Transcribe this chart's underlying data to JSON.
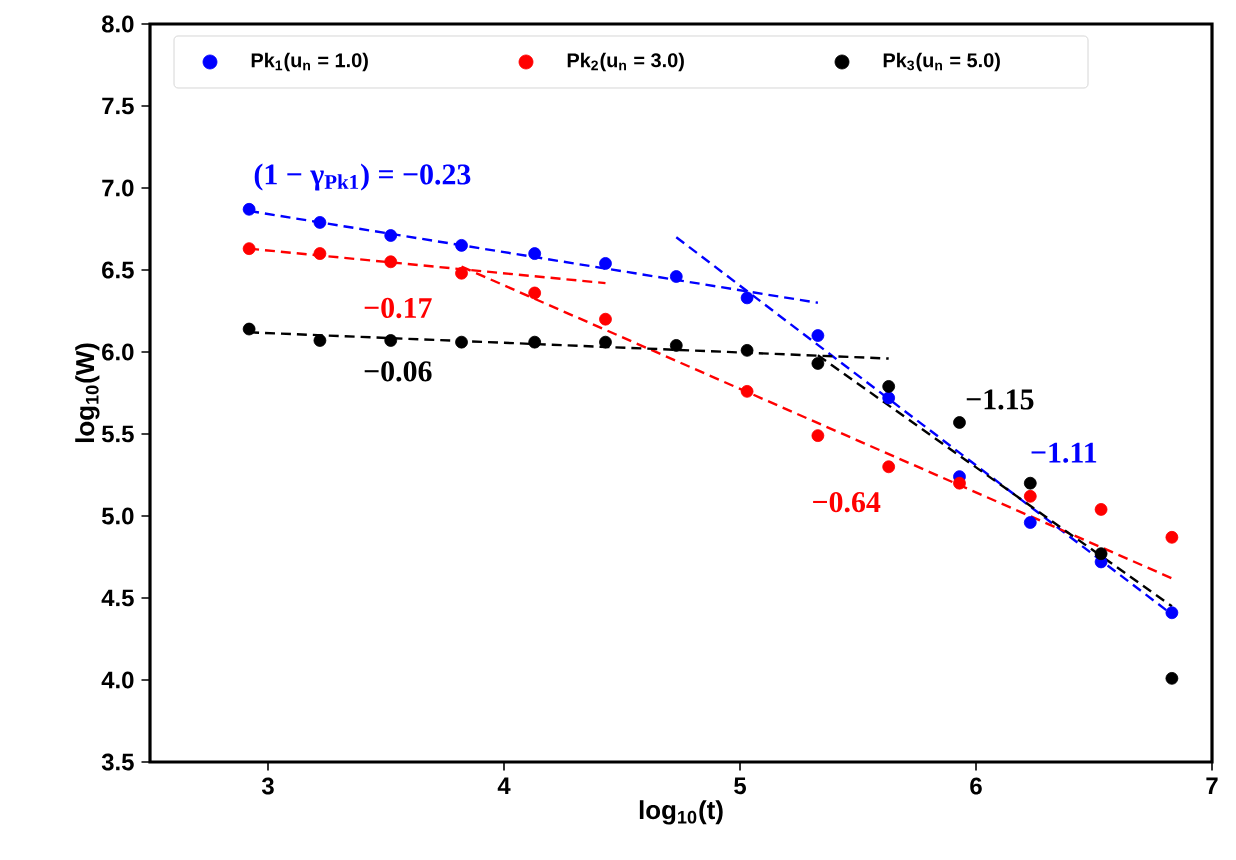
{
  "chart_data": {
    "type": "scatter",
    "xlabel": "log$_{10}$(t)",
    "ylabel": "log$_{10}$(W)",
    "xlim": [
      2.5,
      7
    ],
    "xticks": [
      3,
      4,
      5,
      6,
      7
    ],
    "ylim": [
      3.5,
      8.0
    ],
    "yticks": [
      3.5,
      {
        "value": 4,
        "label": "4.0"
      },
      4.5,
      {
        "value": 5,
        "label": "5.0"
      },
      5.5,
      {
        "value": 6,
        "label": "6.0"
      },
      6.5,
      {
        "value": 7,
        "label": "7.0"
      },
      7.5,
      {
        "value": 8,
        "label": "8.0"
      }
    ],
    "legend": "top left",
    "x": [
      2.92,
      3.22,
      3.52,
      3.82,
      4.13,
      4.43,
      4.73,
      5.03,
      5.33,
      5.63,
      5.93,
      6.23,
      6.53,
      6.83
    ],
    "series": [
      {
        "name": "Pk$_{1}$(u$_{n}$ = 1.0)",
        "marker": "circle",
        "color": "#0000ff",
        "values": [
          6.87,
          6.79,
          6.71,
          6.65,
          6.6,
          6.54,
          6.46,
          6.33,
          6.1,
          5.72,
          5.24,
          4.96,
          4.72,
          4.41
        ]
      },
      {
        "name": "Pk$_{2}$(u$_{n}$ = 3.0)",
        "marker": "circle",
        "color": "#ff0000",
        "values": [
          6.63,
          6.6,
          6.55,
          6.48,
          6.36,
          6.2,
          null,
          5.76,
          5.49,
          5.3,
          5.2,
          5.12,
          5.04,
          4.87
        ]
      },
      {
        "name": "Pk$_{3}$(u$_{n}$ = 5.0)",
        "marker": "circle",
        "color": "#000000",
        "values": [
          6.14,
          6.07,
          6.07,
          6.06,
          6.06,
          6.06,
          6.04,
          6.01,
          5.93,
          5.79,
          5.57,
          5.2,
          4.77,
          4.01
        ]
      },
      {
        "type": "line",
        "line_style": "dashed",
        "color": "#0000ff",
        "x": [
          2.92,
          5.33
        ],
        "values": [
          6.86,
          6.3
        ]
      },
      {
        "type": "line",
        "line_style": "dashed",
        "color": "#0000ff",
        "x": [
          4.73,
          6.83
        ],
        "values": [
          6.7,
          4.4
        ]
      },
      {
        "type": "line",
        "line_style": "dashed",
        "color": "#ff0000",
        "x": [
          2.92,
          4.43
        ],
        "values": [
          6.63,
          6.42
        ]
      },
      {
        "type": "line",
        "line_style": "dashed",
        "color": "#ff0000",
        "x": [
          3.82,
          6.83
        ],
        "values": [
          6.52,
          4.62
        ]
      },
      {
        "type": "line",
        "line_style": "dashed",
        "color": "#000000",
        "x": [
          2.92,
          5.63
        ],
        "values": [
          6.12,
          5.96
        ]
      },
      {
        "type": "line",
        "line_style": "dashed",
        "color": "#000000",
        "x": [
          5.33,
          6.83
        ],
        "values": [
          5.98,
          4.45
        ]
      }
    ],
    "annotations": [
      {
        "text": "(1 − γ$_{Pk1}$) = −0.23",
        "x": 3.4,
        "y": 6.75
      },
      {
        "text": "−0.17",
        "x": 3.55,
        "y": 6.54
      },
      {
        "text": "−0.06",
        "x": 3.55,
        "y": 6.08
      },
      {
        "text": "−1.15",
        "x": 5.8,
        "y": 5.5
      },
      {
        "text": "−1.11",
        "x": 6.1,
        "y": 5.2
      },
      {
        "text": "−0.64",
        "x": 5.45,
        "y": 5.49
      }
    ]
  }
}
